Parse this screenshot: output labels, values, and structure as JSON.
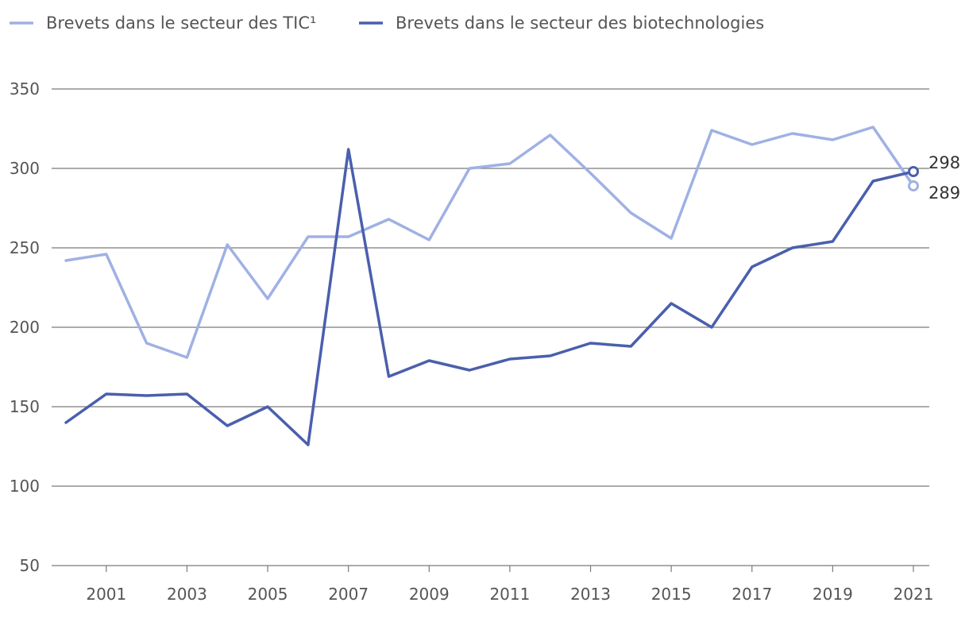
{
  "chart_data": {
    "type": "line",
    "x": [
      2000,
      2001,
      2002,
      2003,
      2004,
      2005,
      2006,
      2007,
      2008,
      2009,
      2010,
      2011,
      2012,
      2013,
      2014,
      2015,
      2016,
      2017,
      2018,
      2019,
      2020,
      2021
    ],
    "x_tick_labels": [
      "2001",
      "2003",
      "2005",
      "2007",
      "2009",
      "2011",
      "2013",
      "2015",
      "2017",
      "2019",
      "2021"
    ],
    "y_tick_labels": [
      "50",
      "100",
      "150",
      "200",
      "250",
      "300",
      "350"
    ],
    "ylim": [
      50,
      350
    ],
    "xlim": [
      2000,
      2021
    ],
    "grid": true,
    "legend_position": "top-left",
    "series": [
      {
        "name": "Brevets dans le secteur des TIC¹",
        "color": "#9fb1e4",
        "values": [
          242,
          246,
          190,
          181,
          252,
          218,
          257,
          257,
          268,
          255,
          300,
          303,
          321,
          297,
          272,
          256,
          324,
          315,
          322,
          318,
          326,
          289
        ],
        "end_label": "289",
        "end_marker": "open-circle"
      },
      {
        "name": "Brevets dans le secteur des biotechnologies",
        "color": "#4a5fad",
        "values": [
          140,
          158,
          157,
          158,
          138,
          150,
          126,
          312,
          169,
          179,
          173,
          180,
          182,
          190,
          188,
          215,
          200,
          238,
          250,
          254,
          292,
          298
        ],
        "end_label": "298",
        "end_marker": "open-circle"
      }
    ]
  }
}
